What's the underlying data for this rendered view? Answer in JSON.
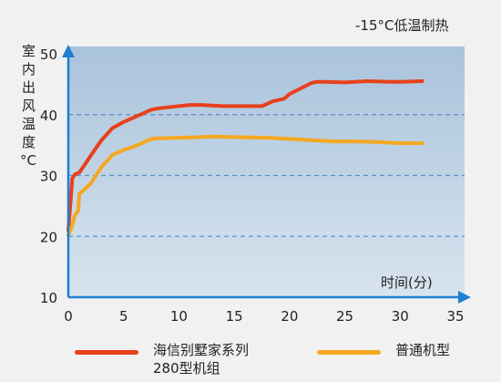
{
  "chart_data": {
    "type": "line",
    "annotation": "-15°C低温制热",
    "xlabel": "时间(分)",
    "ylabel_chars": [
      "室",
      "内",
      "出",
      "风",
      "温",
      "度",
      "°C"
    ],
    "xlim": [
      0,
      35
    ],
    "ylim": [
      10,
      50
    ],
    "xticks": [
      0,
      5,
      10,
      15,
      20,
      25,
      30,
      35
    ],
    "yticks": [
      10,
      20,
      30,
      40,
      50
    ],
    "gridlines_y": [
      20,
      30,
      40
    ],
    "series": [
      {
        "name": "海信别墅家系列280型机组",
        "label_lines": [
          "海信别墅家系列",
          "280型机组"
        ],
        "color": "#e8401c",
        "x": [
          0,
          0.2,
          0.35,
          0.6,
          1,
          1.5,
          2,
          3,
          4,
          5,
          6,
          7,
          7.5,
          8,
          9,
          10,
          11,
          12,
          14,
          16,
          17.5,
          18.5,
          19.5,
          20,
          21,
          22,
          22.5,
          23,
          25,
          27,
          29,
          30,
          32
        ],
        "y": [
          21,
          25.5,
          29.5,
          30.2,
          30.5,
          31.8,
          33.2,
          35.8,
          37.8,
          38.8,
          39.6,
          40.4,
          40.8,
          41,
          41.2,
          41.4,
          41.6,
          41.6,
          41.4,
          41.4,
          41.4,
          42.2,
          42.6,
          43.4,
          44.3,
          45.2,
          45.4,
          45.4,
          45.3,
          45.5,
          45.4,
          45.4,
          45.5
        ]
      },
      {
        "name": "普通机型",
        "label_lines": [
          "普通机型"
        ],
        "color": "#f5a81f",
        "x": [
          0,
          0.3,
          0.6,
          0.9,
          1,
          1.5,
          2,
          3,
          4,
          5,
          6,
          7,
          7.5,
          8,
          10,
          12,
          13,
          15,
          18,
          20,
          22,
          24,
          26,
          28,
          30,
          32
        ],
        "y": [
          20.2,
          21.5,
          23.5,
          24.2,
          27,
          27.8,
          28.6,
          31.4,
          33.4,
          34.2,
          34.8,
          35.6,
          36,
          36.1,
          36.2,
          36.3,
          36.4,
          36.3,
          36.2,
          36,
          35.8,
          35.6,
          35.6,
          35.5,
          35.3,
          35.3
        ]
      }
    ]
  }
}
